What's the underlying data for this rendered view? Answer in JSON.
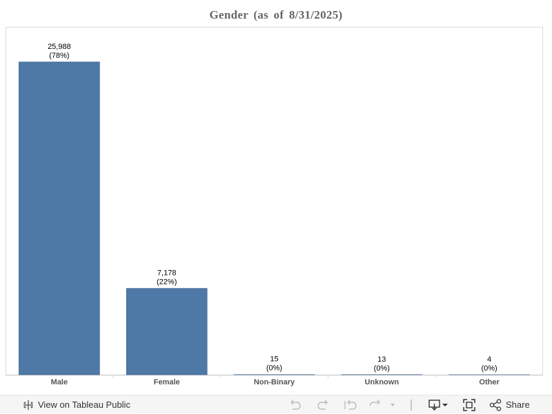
{
  "chart_data": {
    "type": "bar",
    "title": "Gender (as of 8/31/2025)",
    "categories": [
      "Male",
      "Female",
      "Non-Binary",
      "Unknown",
      "Other"
    ],
    "values": [
      25988,
      7178,
      15,
      13,
      4
    ],
    "value_labels": [
      "25,988",
      "7,178",
      "15",
      "13",
      "4"
    ],
    "percent_labels": [
      "(78%)",
      "(22%)",
      "(0%)",
      "(0%)",
      "(0%)"
    ],
    "ylim": [
      0,
      28900
    ],
    "grid": false,
    "bar_color": "#4e79a7",
    "xlabel": "",
    "ylabel": ""
  },
  "toolbar": {
    "view_on_tableau_label": "View on Tableau Public",
    "share_label": "Share",
    "icons": [
      "tableau-logo-icon",
      "undo-icon",
      "redo-icon",
      "revert-icon",
      "refresh-icon",
      "download-icon",
      "fullscreen-icon",
      "share-icon"
    ]
  }
}
